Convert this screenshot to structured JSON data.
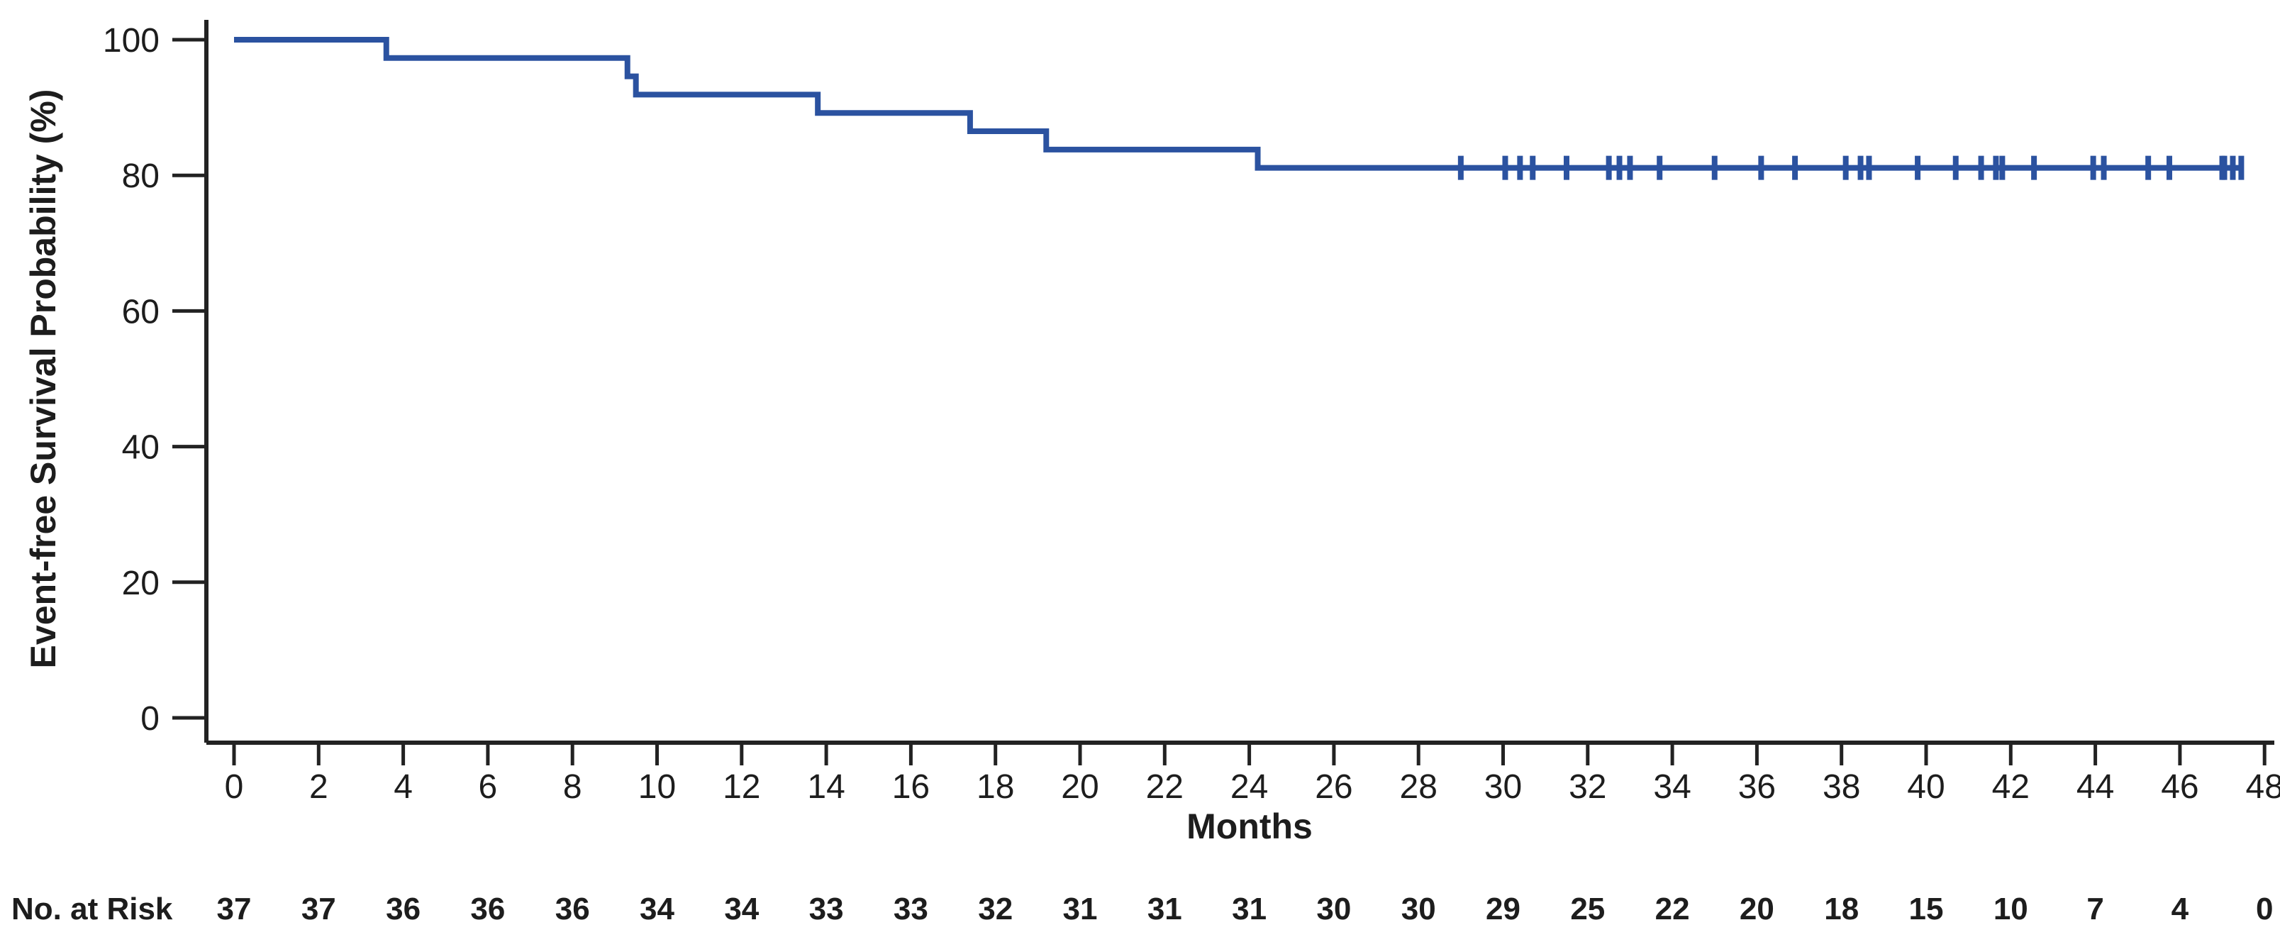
{
  "figure": {
    "background_color": "#ffffff"
  },
  "chart_data": {
    "type": "line",
    "subtype": "kaplan-meier-step-curve",
    "title": "",
    "xlabel": "Months",
    "ylabel": "Event-free Survival Probability (%)",
    "xlim": [
      0,
      48
    ],
    "ylim": [
      0,
      100
    ],
    "x_ticks": [
      0,
      2,
      4,
      6,
      8,
      10,
      12,
      14,
      16,
      18,
      20,
      22,
      24,
      26,
      28,
      30,
      32,
      34,
      36,
      38,
      40,
      42,
      44,
      46,
      48
    ],
    "y_ticks": [
      0,
      20,
      40,
      60,
      80,
      100
    ],
    "grid": false,
    "legend": "none",
    "line_color": "#2B52A0",
    "axis_color": "#222222",
    "series": [
      {
        "name": "Event-free survival",
        "step_points": [
          [
            0,
            100
          ],
          [
            3.6,
            100
          ],
          [
            3.6,
            97.3
          ],
          [
            9.3,
            97.3
          ],
          [
            9.3,
            94.6
          ],
          [
            9.5,
            94.6
          ],
          [
            9.5,
            91.9
          ],
          [
            13.8,
            91.9
          ],
          [
            13.8,
            89.2
          ],
          [
            17.4,
            89.2
          ],
          [
            17.4,
            86.5
          ],
          [
            19.2,
            86.5
          ],
          [
            19.2,
            83.8
          ],
          [
            24.2,
            83.8
          ],
          [
            24.2,
            81.1
          ],
          [
            47.5,
            81.1
          ]
        ],
        "event_times": [
          3.6,
          9.3,
          9.5,
          13.8,
          17.4,
          19.2,
          24.2
        ],
        "survival_after_events": [
          97.3,
          94.6,
          91.9,
          89.2,
          86.5,
          83.8,
          81.1
        ],
        "censor_level": 81.1,
        "censor_times": [
          29.0,
          30.05,
          30.4,
          30.7,
          31.5,
          32.5,
          32.75,
          33.0,
          33.7,
          35.0,
          36.1,
          36.9,
          38.1,
          38.45,
          38.65,
          39.8,
          40.7,
          41.3,
          41.65,
          41.8,
          42.55,
          43.95,
          44.2,
          45.25,
          45.75,
          47.0,
          47.05,
          47.25,
          47.45
        ]
      }
    ],
    "at_risk": {
      "label": "No. at Risk",
      "times": [
        0,
        2,
        4,
        6,
        8,
        10,
        12,
        14,
        16,
        18,
        20,
        22,
        24,
        26,
        28,
        30,
        32,
        34,
        36,
        38,
        40,
        42,
        44,
        46,
        48
      ],
      "counts": [
        37,
        37,
        36,
        36,
        36,
        34,
        34,
        33,
        33,
        32,
        31,
        31,
        31,
        30,
        30,
        29,
        25,
        22,
        20,
        18,
        15,
        10,
        7,
        4,
        0
      ]
    }
  }
}
